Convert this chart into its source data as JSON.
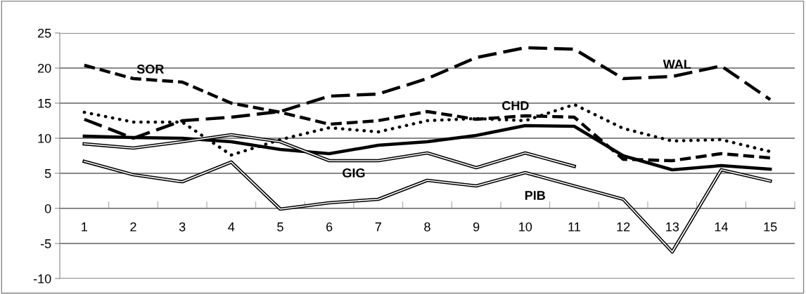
{
  "chart_data": {
    "type": "line",
    "categories": [
      "1",
      "2",
      "3",
      "4",
      "5",
      "6",
      "7",
      "8",
      "9",
      "10",
      "11",
      "12",
      "13",
      "14",
      "15"
    ],
    "series": [
      {
        "name": "SOR",
        "color": "#000000",
        "line_style": "dashed",
        "values": [
          20.4,
          18.5,
          18.0,
          15.0,
          13.7,
          12.0,
          12.5,
          13.8,
          12.7,
          13.2,
          13.0,
          7.0,
          6.8,
          7.8,
          7.2
        ]
      },
      {
        "name": "WAL",
        "color": "#000000",
        "line_style": "longdash",
        "values": [
          12.7,
          10.0,
          12.5,
          13.0,
          13.8,
          16.0,
          16.3,
          18.5,
          21.5,
          22.9,
          22.7,
          18.5,
          18.8,
          20.3,
          15.5
        ]
      },
      {
        "name": "CHD",
        "color": "#000000",
        "line_style": "dotted",
        "values": [
          13.7,
          12.3,
          12.3,
          7.6,
          9.8,
          11.5,
          10.9,
          12.5,
          12.8,
          12.5,
          14.8,
          11.4,
          9.6,
          9.8,
          8.1
        ]
      },
      {
        "color": "#000000",
        "line_style": "solid",
        "values": [
          10.3,
          10.1,
          10.0,
          9.5,
          8.4,
          7.8,
          9.0,
          9.5,
          10.4,
          11.8,
          11.7,
          7.5,
          5.5,
          6.1,
          5.6
        ]
      },
      {
        "name": "GIG",
        "color": "#000000",
        "values": [
          9.2,
          8.6,
          9.5,
          10.5,
          9.5,
          6.8,
          6.8,
          7.9,
          5.8,
          7.9,
          6.0,
          null,
          null,
          null,
          null
        ]
      },
      {
        "name": "PIB",
        "color": "#000000",
        "values": [
          6.7,
          4.8,
          3.8,
          6.6,
          -0.1,
          0.8,
          1.3,
          4.0,
          3.2,
          5.1,
          3.2,
          1.3,
          -6.2,
          5.5,
          3.9
        ]
      }
    ],
    "ylim": [
      -10,
      25
    ],
    "yticks": [
      -10,
      -5,
      0,
      5,
      10,
      15,
      20,
      25
    ],
    "grid": "y",
    "legend": false
  }
}
